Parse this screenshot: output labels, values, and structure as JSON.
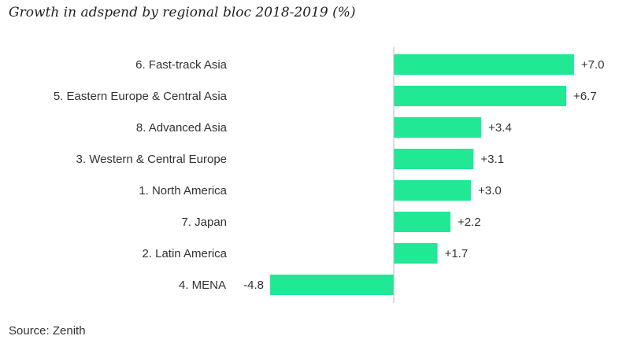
{
  "title": "Growth in adspend by regional bloc 2018-2019 (%)",
  "source": "Source: Zenith",
  "colors": {
    "bar": "#21e894",
    "axis": "#bbbbbb"
  },
  "chart_data": {
    "type": "bar",
    "orientation": "horizontal",
    "title": "Growth in adspend by regional bloc 2018-2019 (%)",
    "categories": [
      "6. Fast-track Asia",
      "5. Eastern Europe & Central Asia",
      "8. Advanced Asia",
      "3. Western & Central Europe",
      "1. North America",
      "7. Japan",
      "2. Latin America",
      "4. MENA"
    ],
    "values": [
      7.0,
      6.7,
      3.4,
      3.1,
      3.0,
      2.2,
      1.7,
      -4.8
    ],
    "value_labels": [
      "+7.0",
      "+6.7",
      "+3.4",
      "+3.1",
      "+3.0",
      "+2.2",
      "+1.7",
      "-4.8"
    ],
    "xlim": [
      -4.8,
      7.0
    ],
    "grid": false,
    "legend": "none"
  }
}
